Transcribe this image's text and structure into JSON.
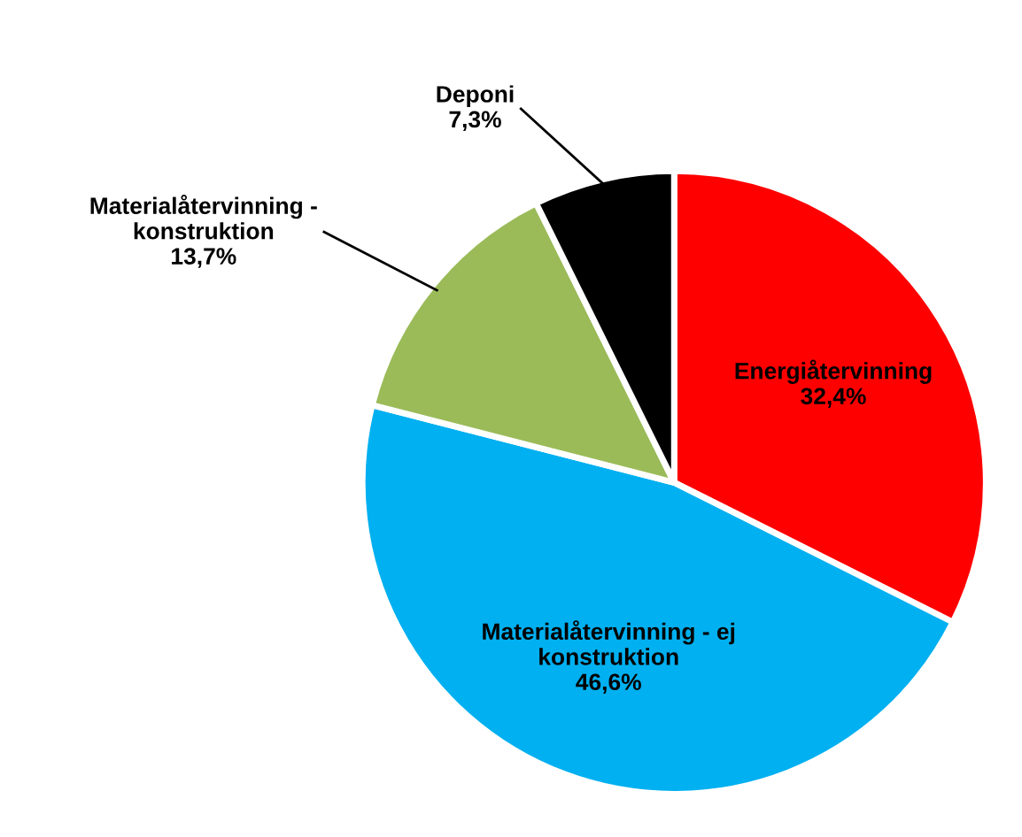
{
  "chart_data": {
    "type": "pie",
    "categories": [
      "Energiåtervinning",
      "Materialåtervinning - ej\nkonstruktion",
      "Materialåtervinning -\nkonstruktion",
      "Deponi"
    ],
    "values": [
      32.4,
      46.6,
      13.7,
      7.3
    ],
    "value_labels": [
      "32,4%",
      "46,6%",
      "13,7%",
      "7,3%"
    ],
    "colors": [
      "#ff0000",
      "#00b0f0",
      "#9bbb59",
      "#000000"
    ]
  }
}
